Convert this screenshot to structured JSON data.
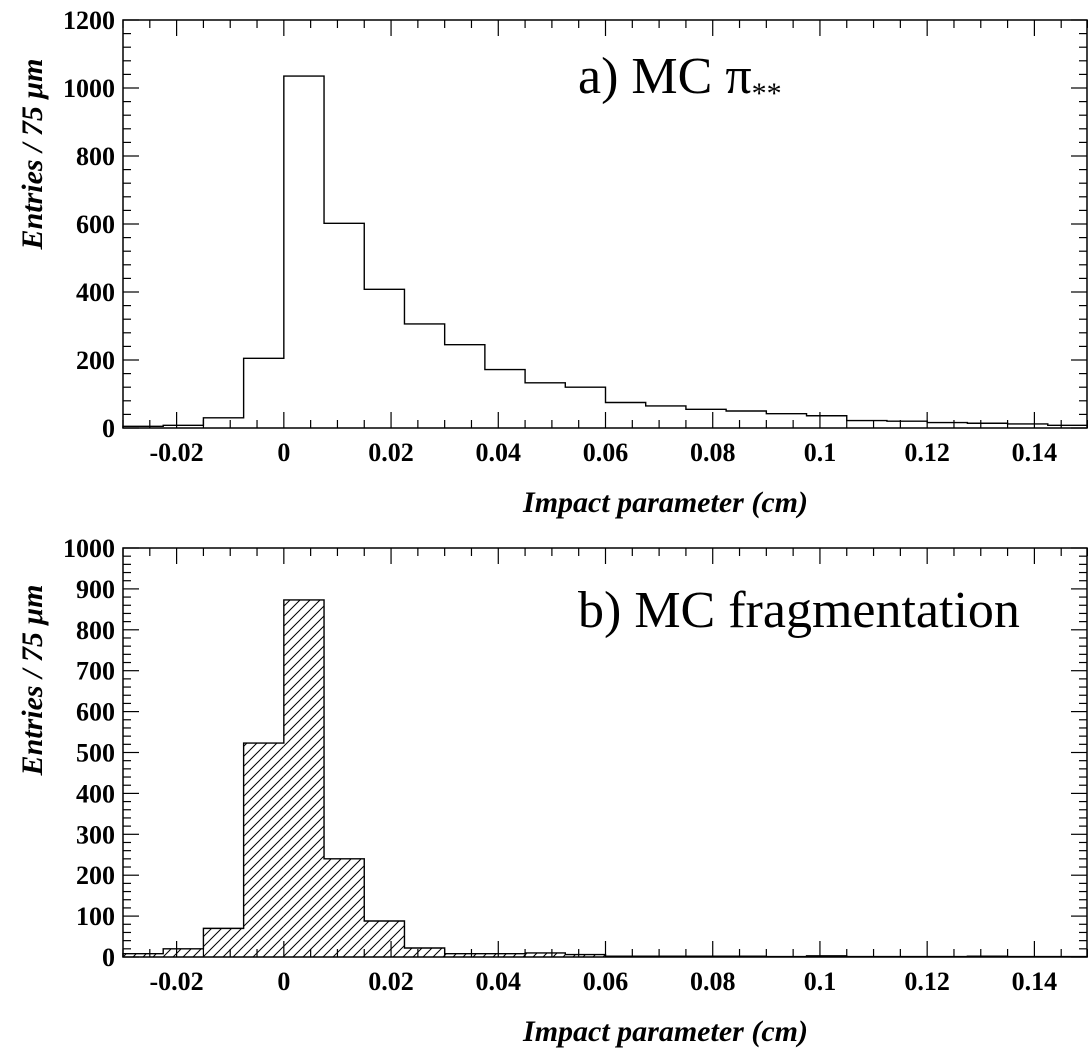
{
  "chart_data": [
    {
      "type": "bar",
      "title": "a) MC π",
      "title_subscript": "**",
      "xlabel": "Impact parameter (cm)",
      "ylabel": "Entries / 75 μm",
      "xlim": [
        -0.03,
        0.15
      ],
      "ylim": [
        0,
        1200
      ],
      "x_ticks": [
        -0.02,
        0,
        0.02,
        0.04,
        0.06,
        0.08,
        0.1,
        0.12,
        0.14
      ],
      "x_tick_labels": [
        "-0.02",
        "0",
        "0.02",
        "0.04",
        "0.06",
        "0.08",
        "0.1",
        "0.12",
        "0.14"
      ],
      "y_ticks": [
        0,
        200,
        400,
        600,
        800,
        1000,
        1200
      ],
      "y_tick_labels": [
        "0",
        "200",
        "400",
        "600",
        "800",
        "1000",
        "1200"
      ],
      "hatched": false,
      "bin_edges": [
        -0.03,
        -0.0225,
        -0.015,
        -0.0075,
        0,
        0.0075,
        0.015,
        0.0225,
        0.03,
        0.0375,
        0.045,
        0.0525,
        0.06,
        0.0675,
        0.075,
        0.0825,
        0.09,
        0.0975,
        0.105,
        0.1125,
        0.12,
        0.1275,
        0.135,
        0.1425,
        0.15
      ],
      "values": [
        5,
        8,
        30,
        205,
        1035,
        602,
        408,
        306,
        245,
        172,
        133,
        120,
        75,
        65,
        55,
        50,
        42,
        36,
        22,
        20,
        16,
        14,
        12,
        8
      ]
    },
    {
      "type": "bar",
      "title": "b) MC fragmentation",
      "xlabel": "Impact parameter (cm)",
      "ylabel": "Entries / 75 μm",
      "xlim": [
        -0.03,
        0.15
      ],
      "ylim": [
        0,
        1000
      ],
      "x_ticks": [
        -0.02,
        0,
        0.02,
        0.04,
        0.06,
        0.08,
        0.1,
        0.12,
        0.14
      ],
      "x_tick_labels": [
        "-0.02",
        "0",
        "0.02",
        "0.04",
        "0.06",
        "0.08",
        "0.1",
        "0.12",
        "0.14"
      ],
      "y_ticks": [
        0,
        100,
        200,
        300,
        400,
        500,
        600,
        700,
        800,
        900,
        1000
      ],
      "y_tick_labels": [
        "0",
        "100",
        "200",
        "300",
        "400",
        "500",
        "600",
        "700",
        "800",
        "900",
        "1000"
      ],
      "hatched": true,
      "bin_edges": [
        -0.03,
        -0.0225,
        -0.015,
        -0.0075,
        0,
        0.0075,
        0.015,
        0.0225,
        0.03,
        0.0375,
        0.045,
        0.0525,
        0.06,
        0.0675,
        0.075,
        0.0825,
        0.09,
        0.0975,
        0.105,
        0.1125,
        0.12,
        0.1275,
        0.135,
        0.1425,
        0.15
      ],
      "values": [
        8,
        20,
        70,
        523,
        873,
        240,
        88,
        22,
        8,
        8,
        10,
        6,
        2,
        2,
        2,
        2,
        1,
        3,
        1,
        1,
        1,
        2,
        1,
        1
      ]
    }
  ]
}
